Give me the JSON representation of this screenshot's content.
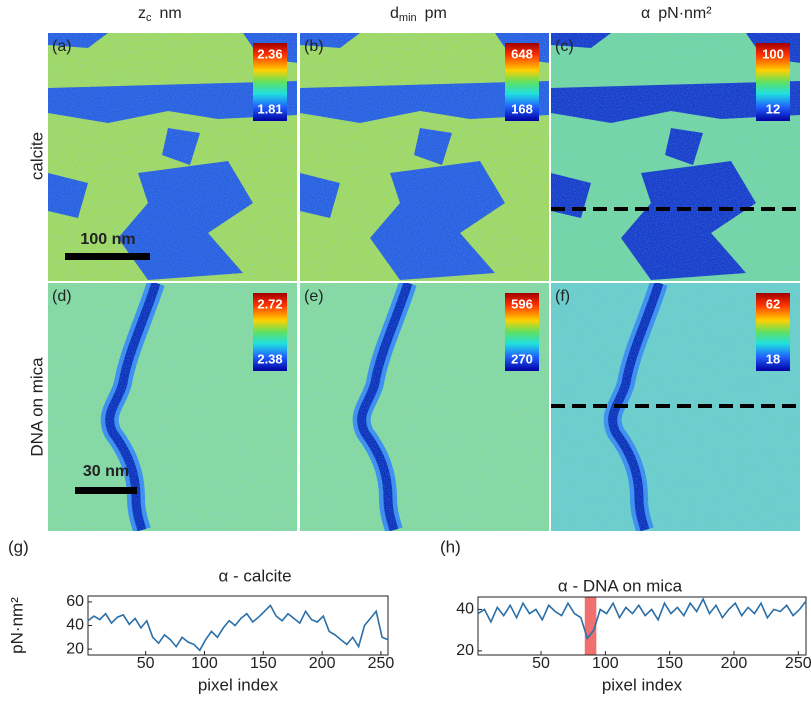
{
  "columns": [
    {
      "symbol": "z",
      "sub": "c",
      "unit": "nm"
    },
    {
      "symbol": "d",
      "sub": "min",
      "unit": "pm"
    },
    {
      "symbol": "α",
      "unit": "pN·nm²"
    }
  ],
  "rows": [
    "calcite",
    "DNA on mica"
  ],
  "panels": [
    {
      "label": "(a)",
      "cmax": 2.36,
      "cmin": 1.81
    },
    {
      "label": "(b)",
      "cmax": 648,
      "cmin": 168
    },
    {
      "label": "(c)",
      "cmax": 100,
      "cmin": 12
    },
    {
      "label": "(d)",
      "cmax": 2.72,
      "cmin": 2.38
    },
    {
      "label": "(e)",
      "cmax": 596,
      "cmin": 270
    },
    {
      "label": "(f)",
      "cmax": 62,
      "cmin": 18
    }
  ],
  "scale_bars": [
    "100 nm",
    "30 nm"
  ],
  "chart_data": [
    {
      "type": "line",
      "panel_label": "(g)",
      "title": "α - calcite",
      "xlabel": "pixel index",
      "ylabel": "pN·nm²",
      "color": "#2a6fa8",
      "x": [
        1,
        6,
        11,
        16,
        21,
        26,
        31,
        36,
        41,
        46,
        51,
        56,
        61,
        66,
        71,
        76,
        81,
        86,
        91,
        96,
        101,
        106,
        111,
        116,
        121,
        126,
        131,
        136,
        141,
        146,
        151,
        156,
        161,
        166,
        171,
        176,
        181,
        186,
        191,
        196,
        201,
        206,
        211,
        216,
        221,
        226,
        231,
        236,
        241,
        246,
        251,
        256
      ],
      "values": [
        44,
        48,
        45,
        50,
        42,
        47,
        49,
        41,
        46,
        38,
        44,
        30,
        25,
        32,
        28,
        22,
        30,
        26,
        24,
        19,
        28,
        35,
        30,
        38,
        44,
        40,
        46,
        50,
        43,
        47,
        52,
        57,
        48,
        44,
        50,
        46,
        42,
        52,
        45,
        43,
        48,
        35,
        32,
        28,
        24,
        30,
        22,
        40,
        46,
        52,
        30,
        28
      ],
      "xlim": [
        1,
        256
      ],
      "ylim": [
        15,
        65
      ],
      "xticks": [
        50,
        100,
        150,
        200,
        250
      ],
      "yticks": [
        20,
        40,
        60
      ]
    },
    {
      "type": "line",
      "panel_label": "(h)",
      "title": "α - DNA on mica",
      "xlabel": "pixel index",
      "color": "#2a6fa8",
      "highlight_x": [
        84,
        93
      ],
      "highlight_color": "#f07070",
      "x": [
        1,
        6,
        11,
        16,
        21,
        26,
        31,
        36,
        41,
        46,
        51,
        56,
        61,
        66,
        71,
        76,
        81,
        86,
        91,
        96,
        101,
        106,
        111,
        116,
        121,
        126,
        131,
        136,
        141,
        146,
        151,
        156,
        161,
        166,
        171,
        176,
        181,
        186,
        191,
        196,
        201,
        206,
        211,
        216,
        221,
        226,
        231,
        236,
        241,
        246,
        251,
        256
      ],
      "values": [
        38,
        40,
        34,
        41,
        37,
        42,
        36,
        43,
        38,
        40,
        35,
        42,
        39,
        37,
        43,
        38,
        36,
        26,
        30,
        40,
        38,
        43,
        36,
        41,
        38,
        42,
        37,
        40,
        35,
        43,
        38,
        41,
        37,
        43,
        39,
        45,
        38,
        42,
        36,
        40,
        43,
        37,
        41,
        38,
        43,
        36,
        40,
        39,
        42,
        37,
        40,
        44
      ],
      "xlim": [
        1,
        256
      ],
      "ylim": [
        18,
        46
      ],
      "xticks": [
        50,
        100,
        150,
        200,
        250
      ],
      "yticks": [
        20,
        40
      ]
    }
  ]
}
